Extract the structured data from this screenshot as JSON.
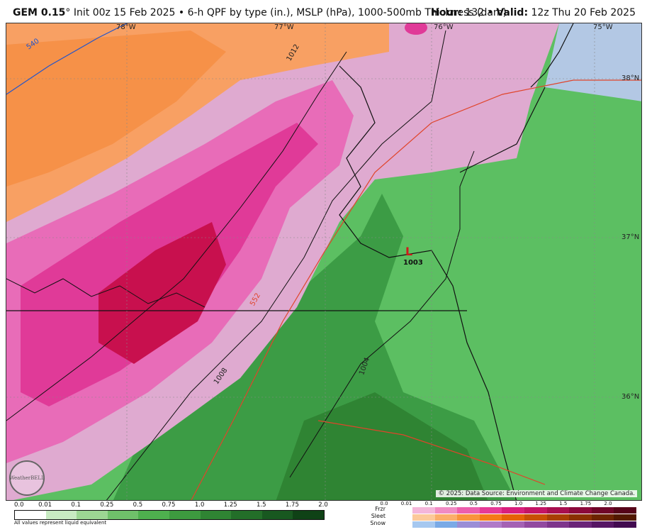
{
  "header": {
    "model": "GEM 0.15",
    "degree": "°",
    "init": " Init 00z 15 Feb 2025 • 6-h QPF by type (in.), MSLP (hPa), 1000-500mb Thickness (dam)",
    "hour_label": "Hour:",
    "hour_value": "132",
    "valid_sep": " • ",
    "valid_label": "Valid:",
    "valid_value": "12z Thu 20 Feb 2025"
  },
  "map": {
    "lon_labels": [
      "78°W",
      "77°W",
      "76°W",
      "75°W"
    ],
    "lat_labels": [
      "38°N",
      "37°N",
      "36°N"
    ],
    "isobars": [
      "1012",
      "1008",
      "1004"
    ],
    "thickness": [
      "540",
      "552"
    ],
    "low_symbol": "L",
    "low_value": "1003",
    "credit": "© 2025: Data Source: Environment and Climate Change Canada.",
    "logo_text": "WeatherBELL"
  },
  "legend": {
    "rain_ticks": [
      "0.0",
      "0.01",
      "0.1",
      "0.25",
      "0.5",
      "0.75",
      "1.0",
      "1.25",
      "1.5",
      "1.75",
      "2.0"
    ],
    "rain_colors": [
      "#ffffff",
      "#c8eac2",
      "#9cd693",
      "#6fc16a",
      "#4eb04e",
      "#3d9a3f",
      "#2f8433",
      "#236e29",
      "#185820",
      "#0f4216"
    ],
    "note": "All values represent liquid equivalent",
    "mix_ticks": [
      "0.0",
      "0.01",
      "0.1",
      "0.25",
      "0.5",
      "0.75",
      "1.0",
      "1.25",
      "1.5",
      "1.75",
      "2.0"
    ],
    "frzr_label": "Frzr",
    "sleet_label": "Sleet",
    "snow_label": "Snow",
    "frzr_colors": [
      "#f4b6da",
      "#f08bc4",
      "#ec5fad",
      "#e63a96",
      "#d81f7c",
      "#c41565",
      "#a80f4f",
      "#8c0a3c",
      "#700629",
      "#560319"
    ],
    "sleet_colors": [
      "#fcc99a",
      "#fbae6b",
      "#f9943d",
      "#f57a18",
      "#e56206",
      "#c85004",
      "#a83f03",
      "#8a3102",
      "#6d2401",
      "#521800"
    ],
    "snow_colors": [
      "#a6c8f0",
      "#7aaae6",
      "#9a8ed6",
      "#b07ac8",
      "#a462b4",
      "#924aa0",
      "#7e368c",
      "#6a2478",
      "#561664",
      "#420b50"
    ]
  },
  "colors": {
    "orange": "#f8a063",
    "orange_dark": "#f58a3d",
    "pink_light": "#dfaad0",
    "pink": "#e86cb8",
    "magenta": "#e03a98",
    "crimson": "#c8104e",
    "green": "#5cbf62",
    "green_dark": "#3c9c45",
    "blue": "#b3c8e4"
  }
}
